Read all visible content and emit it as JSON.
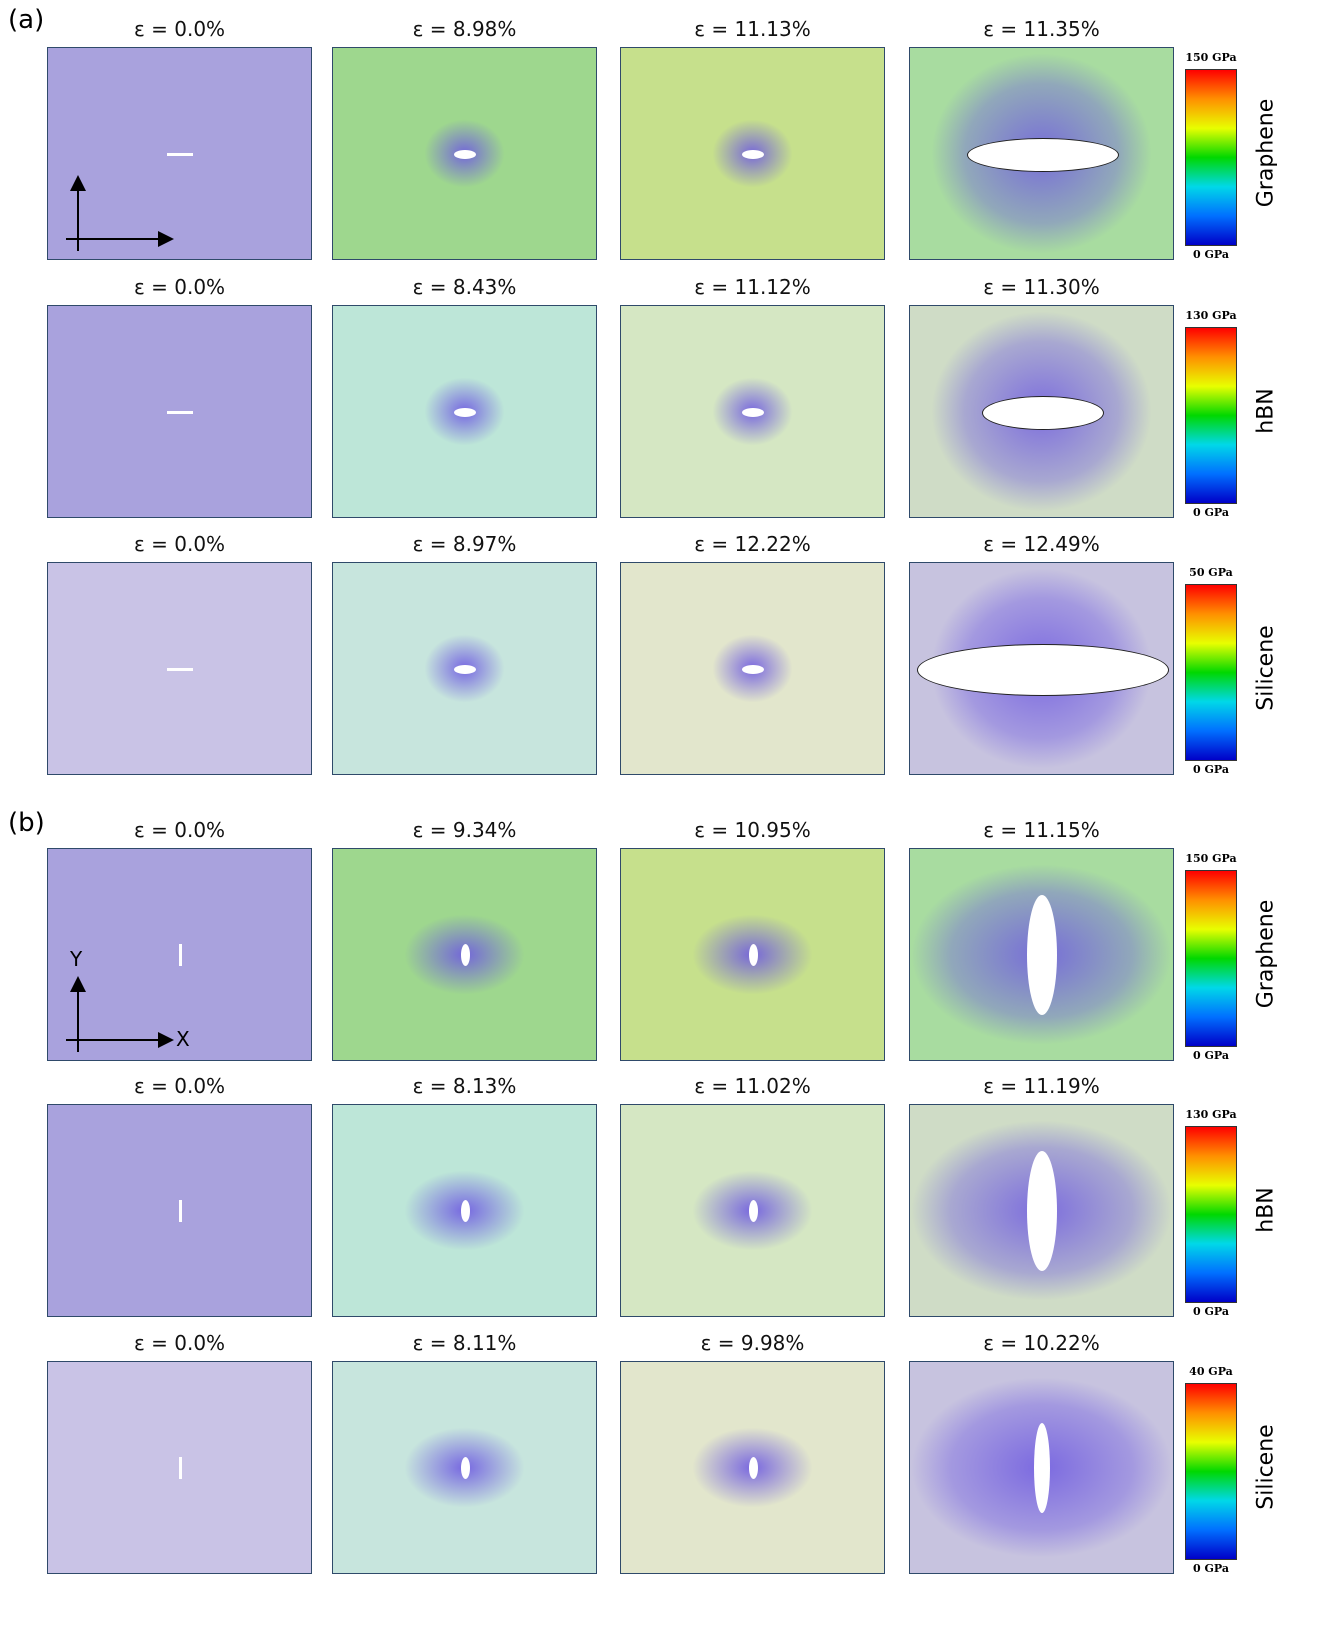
{
  "panels": [
    {
      "label": "(a)",
      "axes": null,
      "rows": [
        {
          "material": "Graphene",
          "max": "150 GPa",
          "min": "0 GPa",
          "strains": [
            "ε = 0.0%",
            "ε = 8.98%",
            "ε = 11.13%",
            "ε = 11.35%"
          ]
        },
        {
          "material": "hBN",
          "max": "130 GPa",
          "min": "0 GPa",
          "strains": [
            "ε = 0.0%",
            "ε = 8.43%",
            "ε = 11.12%",
            "ε = 11.30%"
          ]
        },
        {
          "material": "Silicene",
          "max": "50 GPa",
          "min": "0 GPa",
          "strains": [
            "ε = 0.0%",
            "ε = 8.97%",
            "ε = 12.22%",
            "ε = 12.49%"
          ]
        }
      ]
    },
    {
      "label": "(b)",
      "axes": {
        "x": "X",
        "y": "Y"
      },
      "rows": [
        {
          "material": "Graphene",
          "max": "150 GPa",
          "min": "0 GPa",
          "strains": [
            "ε = 0.0%",
            "ε = 9.34%",
            "ε = 10.95%",
            "ε = 11.15%"
          ]
        },
        {
          "material": "hBN",
          "max": "130 GPa",
          "min": "0 GPa",
          "strains": [
            "ε = 0.0%",
            "ε = 8.13%",
            "ε = 11.02%",
            "ε = 11.19%"
          ]
        },
        {
          "material": "Silicene",
          "max": "40 GPa",
          "min": "0 GPa",
          "strains": [
            "ε = 0.0%",
            "ε = 8.11%",
            "ε = 9.98%",
            "ε = 10.22%"
          ]
        }
      ]
    }
  ]
}
